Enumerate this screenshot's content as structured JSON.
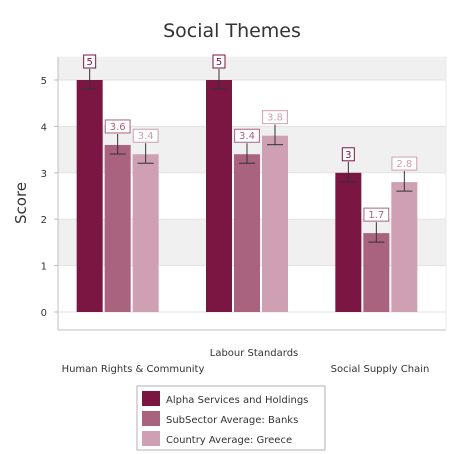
{
  "chart_data": {
    "type": "bar",
    "title": "Social Themes",
    "xlabel": "",
    "ylabel": "Score",
    "ylim": [
      0,
      5.5
    ],
    "yticks": [
      0,
      1,
      2,
      3,
      4,
      5
    ],
    "grid": true,
    "legend_position": "bottom",
    "categories": [
      "Human Rights & Community",
      "Labour Standards",
      "Social Supply Chain"
    ],
    "series": [
      {
        "name": "Alpha Services and Holdings",
        "values": [
          5,
          5,
          3
        ],
        "labels": [
          "5",
          "5",
          "3"
        ],
        "color": "#7b1541"
      },
      {
        "name": "SubSector Average: Banks",
        "values": [
          3.6,
          3.4,
          1.7
        ],
        "labels": [
          "3.6",
          "3.4",
          "1.7"
        ],
        "color": "#a9637f"
      },
      {
        "name": "Country Average: Greece",
        "values": [
          3.4,
          3.8,
          2.8
        ],
        "labels": [
          "3.4",
          "3.8",
          "2.8"
        ],
        "color": "#cf9fb3"
      }
    ],
    "band_color": "#f0f0f0",
    "axis_color": "#bfbfbf"
  }
}
